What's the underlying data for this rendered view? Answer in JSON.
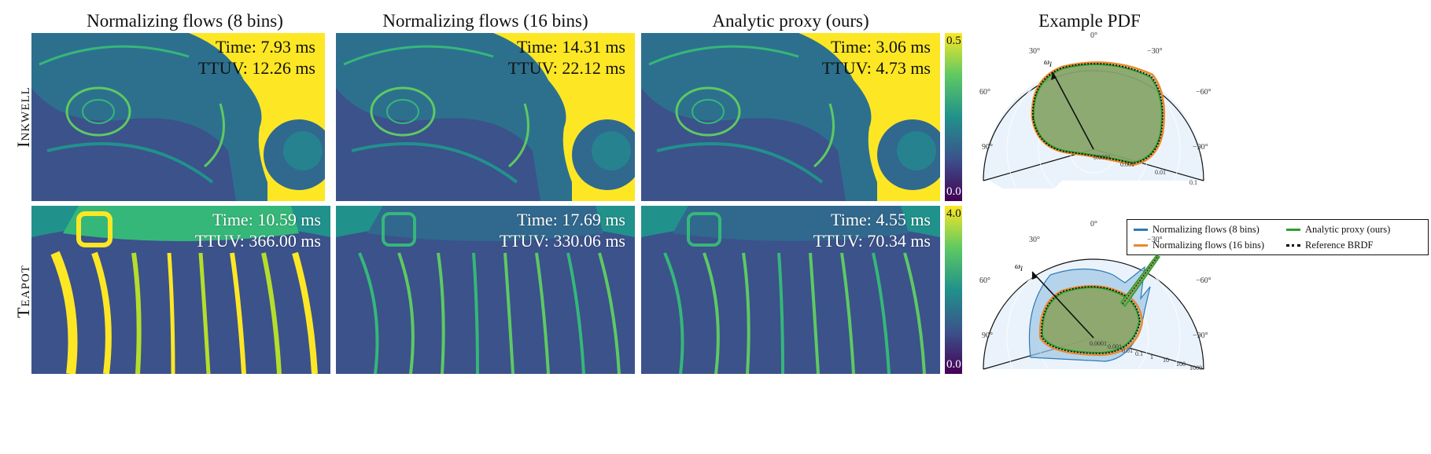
{
  "columns": [
    {
      "title": "Normalizing flows (8 bins)"
    },
    {
      "title": "Normalizing flows (16 bins)"
    },
    {
      "title": "Analytic proxy (ours)"
    },
    {
      "title": "Example PDF"
    }
  ],
  "rows": [
    {
      "label": "Inkwell",
      "colorbar": {
        "max": "0.5",
        "min": "0.0"
      },
      "panels": [
        {
          "time": "Time: 7.93 ms",
          "ttuv": "TTUV: 12.26 ms"
        },
        {
          "time": "Time: 14.31 ms",
          "ttuv": "TTUV: 22.12 ms"
        },
        {
          "time": "Time: 3.06 ms",
          "ttuv": "TTUV: 4.73 ms"
        }
      ]
    },
    {
      "label": "Teapot",
      "colorbar": {
        "max": "4.0",
        "min": "0.0"
      },
      "panels": [
        {
          "time": "Time: 10.59 ms",
          "ttuv": "TTUV: 366.00 ms"
        },
        {
          "time": "Time: 17.69 ms",
          "ttuv": "TTUV: 330.06 ms"
        },
        {
          "time": "Time: 4.55 ms",
          "ttuv": "TTUV: 70.34 ms"
        }
      ]
    }
  ],
  "colors": {
    "viridis_dark": "#440154",
    "viridis_blue": "#31688e",
    "viridis_teal": "#21918c",
    "viridis_green": "#35b779",
    "viridis_yellow": "#fde725",
    "nf8": "#2c7bb6",
    "nf16": "#e8892b",
    "analytic": "#2ca02c",
    "reference": "#000000"
  },
  "legend": [
    {
      "label": "Normalizing flows (8 bins)",
      "color": "#2c7bb6",
      "style": "solid"
    },
    {
      "label": "Analytic proxy (ours)",
      "color": "#2ca02c",
      "style": "solid"
    },
    {
      "label": "Normalizing flows (16 bins)",
      "color": "#e8892b",
      "style": "solid"
    },
    {
      "label": "Reference BRDF",
      "color": "#000000",
      "style": "dotted"
    }
  ],
  "chart_data": [
    {
      "type": "polar",
      "title": "Example PDF",
      "angle_ticks": [
        "0°",
        "30°",
        "−30°",
        "60°",
        "−60°",
        "90°",
        "−90°"
      ],
      "radial_ticks": [
        "0.0001",
        "0.001",
        "0.01",
        "0.1"
      ],
      "scale": "log",
      "incident_label": "ω",
      "incident_subscript": "i",
      "incident_angle_deg": 30,
      "series": [
        "Normalizing flows (8 bins)",
        "Normalizing flows (16 bins)",
        "Analytic proxy (ours)",
        "Reference BRDF"
      ]
    },
    {
      "type": "polar",
      "angle_ticks": [
        "0°",
        "30°",
        "−30°",
        "60°",
        "−60°",
        "90°",
        "−90°"
      ],
      "radial_ticks": [
        "0.0001",
        "0.001",
        "0.01",
        "0.1",
        "1",
        "10",
        "100",
        "1000"
      ],
      "scale": "log",
      "incident_label": "ω",
      "incident_subscript": "i",
      "incident_angle_deg": 45,
      "series": [
        "Normalizing flows (8 bins)",
        "Normalizing flows (16 bins)",
        "Analytic proxy (ours)",
        "Reference BRDF"
      ]
    }
  ]
}
